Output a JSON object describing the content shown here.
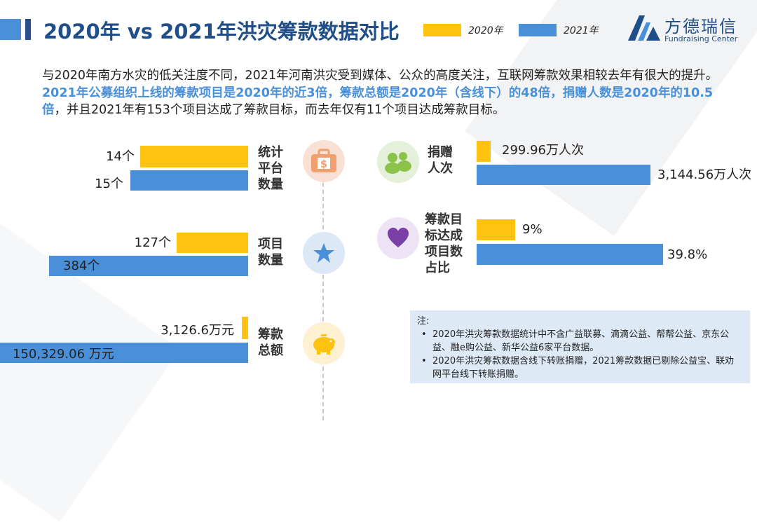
{
  "header": {
    "title": "2020年 vs 2021年洪灾筹款数据对比"
  },
  "legend": [
    {
      "label": "2020年",
      "color": "#ffc20e"
    },
    {
      "label": "2021年",
      "color": "#4a90d9"
    }
  ],
  "logo": {
    "cn": "方德瑞信",
    "en": "Fundraising Center"
  },
  "intro": {
    "part1": "与2020年南方水灾的低关注度不同，2021年河南洪灾受到媒体、公众的高度关注，互联网筹款效果相较去年有很大的提升。",
    "part2": "2021年公募组织上线的筹款项目是2020年的近3倍，筹款总额是2020年（含线下）的48倍，捐赠人数是2020年的10.5倍",
    "part3": "，并且2021年有153个项目达成了筹款目标，而去年仅有11个项目达成筹款目标。"
  },
  "chart_data": [
    {
      "type": "bar",
      "category": "统计\n平台\n数量",
      "icon": "money-bag-icon",
      "series": [
        {
          "name": "2020年",
          "value": 14,
          "label": "14个"
        },
        {
          "name": "2021年",
          "value": 15,
          "label": "15个"
        }
      ]
    },
    {
      "type": "bar",
      "category": "项目\n数量",
      "icon": "star-icon",
      "series": [
        {
          "name": "2020年",
          "value": 127,
          "label": "127个"
        },
        {
          "name": "2021年",
          "value": 384,
          "label": "384个"
        }
      ]
    },
    {
      "type": "bar",
      "category": "筹款\n总额",
      "icon": "piggy-bank-icon",
      "series": [
        {
          "name": "2020年",
          "value": 3126.6,
          "label": "3,126.6万元"
        },
        {
          "name": "2021年",
          "value": 150329.06,
          "label": "150,329.06 万元"
        }
      ]
    },
    {
      "type": "bar",
      "category": "捐赠\n人次",
      "icon": "people-icon",
      "series": [
        {
          "name": "2020年",
          "value": 299.96,
          "label": "299.96万人次"
        },
        {
          "name": "2021年",
          "value": 3144.56,
          "label": "3,144.56万人次"
        }
      ]
    },
    {
      "type": "bar",
      "category": "筹款目\n标达成\n项目数\n占比",
      "icon": "heart-icon",
      "series": [
        {
          "name": "2020年",
          "value": 9,
          "label": "9%"
        },
        {
          "name": "2021年",
          "value": 39.8,
          "label": "39.8%"
        }
      ]
    }
  ],
  "note": {
    "heading": "注:",
    "items": [
      "2020年洪灾筹款数据统计中不含广益联募、滴滴公益、帮帮公益、京东公益、融e购公益、新华公益6家平台数据。",
      "2020年洪灾筹款数据含线下转账捐赠，2021筹款数据已剔除公益宝、联劝网平台线下转账捐赠。"
    ]
  }
}
